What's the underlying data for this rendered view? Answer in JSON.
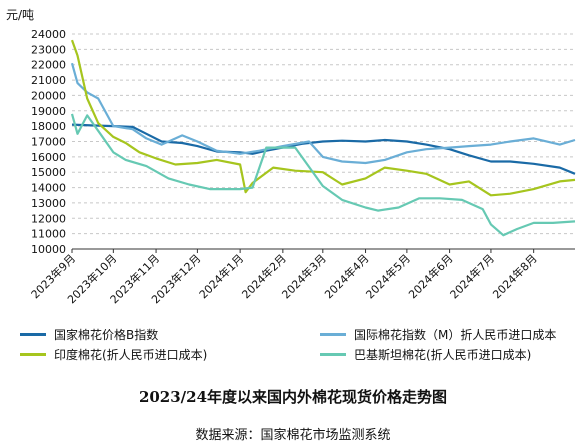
{
  "chart_data": {
    "type": "line",
    "title": "2023/24年度以来国内外棉花现货价格走势图",
    "source": "数据来源：国家棉花市场监测系统",
    "ylabel": "元/吨",
    "xlabel": "",
    "ylim": [
      10000,
      24000
    ],
    "yticks": [
      10000,
      11000,
      12000,
      13000,
      14000,
      15000,
      16000,
      17000,
      18000,
      19000,
      20000,
      21000,
      22000,
      23000,
      24000
    ],
    "xlim": [
      "2023-09-01",
      "2024-08-31"
    ],
    "xticks": [
      {
        "date": "2023-09-01",
        "label": "2023年9月"
      },
      {
        "date": "2023-10-01",
        "label": "2023年10月"
      },
      {
        "date": "2023-11-01",
        "label": "2023年11月"
      },
      {
        "date": "2023-12-01",
        "label": "2023年12月"
      },
      {
        "date": "2024-01-01",
        "label": "2024年1月"
      },
      {
        "date": "2024-02-01",
        "label": "2024年2月"
      },
      {
        "date": "2024-03-01",
        "label": "2024年3月"
      },
      {
        "date": "2024-04-01",
        "label": "2024年4月"
      },
      {
        "date": "2024-05-01",
        "label": "2024年5月"
      },
      {
        "date": "2024-06-01",
        "label": "2024年6月"
      },
      {
        "date": "2024-07-01",
        "label": "2024年7月"
      },
      {
        "date": "2024-08-01",
        "label": "2024年8月"
      }
    ],
    "grid": true,
    "legend_position": "bottom",
    "series": [
      {
        "name": "国家棉花价格B指数",
        "color": "#1a6aa6",
        "points": [
          [
            "2023-09-01",
            18100
          ],
          [
            "2023-09-15",
            18050
          ],
          [
            "2023-10-01",
            18000
          ],
          [
            "2023-10-15",
            17950
          ],
          [
            "2023-10-25",
            17500
          ],
          [
            "2023-11-05",
            17000
          ],
          [
            "2023-11-20",
            16900
          ],
          [
            "2023-12-01",
            16700
          ],
          [
            "2023-12-15",
            16350
          ],
          [
            "2024-01-01",
            16300
          ],
          [
            "2024-01-10",
            16200
          ],
          [
            "2024-01-20",
            16400
          ],
          [
            "2024-02-01",
            16600
          ],
          [
            "2024-02-15",
            16850
          ],
          [
            "2024-03-01",
            17000
          ],
          [
            "2024-03-15",
            17050
          ],
          [
            "2024-04-01",
            17000
          ],
          [
            "2024-04-15",
            17100
          ],
          [
            "2024-05-01",
            17000
          ],
          [
            "2024-05-15",
            16800
          ],
          [
            "2024-06-01",
            16500
          ],
          [
            "2024-06-15",
            16100
          ],
          [
            "2024-07-01",
            15700
          ],
          [
            "2024-07-15",
            15700
          ],
          [
            "2024-08-01",
            15550
          ],
          [
            "2024-08-20",
            15300
          ],
          [
            "2024-08-31",
            14900
          ]
        ]
      },
      {
        "name": "国际棉花指数（M）折人民币进口成本",
        "color": "#6aaed6",
        "points": [
          [
            "2023-09-01",
            22100
          ],
          [
            "2023-09-05",
            20800
          ],
          [
            "2023-09-12",
            20200
          ],
          [
            "2023-09-20",
            19800
          ],
          [
            "2023-10-01",
            18000
          ],
          [
            "2023-10-15",
            17800
          ],
          [
            "2023-10-25",
            17200
          ],
          [
            "2023-11-05",
            16800
          ],
          [
            "2023-11-20",
            17400
          ],
          [
            "2023-12-01",
            17000
          ],
          [
            "2023-12-15",
            16400
          ],
          [
            "2024-01-01",
            16200
          ],
          [
            "2024-01-15",
            16400
          ],
          [
            "2024-02-01",
            16700
          ],
          [
            "2024-02-20",
            17000
          ],
          [
            "2024-03-01",
            16000
          ],
          [
            "2024-03-15",
            15700
          ],
          [
            "2024-04-01",
            15600
          ],
          [
            "2024-04-15",
            15800
          ],
          [
            "2024-05-01",
            16300
          ],
          [
            "2024-05-15",
            16500
          ],
          [
            "2024-06-01",
            16600
          ],
          [
            "2024-06-15",
            16700
          ],
          [
            "2024-07-01",
            16800
          ],
          [
            "2024-07-15",
            17000
          ],
          [
            "2024-08-01",
            17200
          ],
          [
            "2024-08-20",
            16800
          ],
          [
            "2024-08-31",
            17100
          ]
        ]
      },
      {
        "name": "印度棉花(折人民币进口成本)",
        "color": "#a6c51e",
        "points": [
          [
            "2023-09-01",
            23600
          ],
          [
            "2023-09-05",
            22600
          ],
          [
            "2023-09-12",
            19800
          ],
          [
            "2023-09-20",
            18200
          ],
          [
            "2023-10-01",
            17300
          ],
          [
            "2023-10-10",
            16900
          ],
          [
            "2023-10-20",
            16300
          ],
          [
            "2023-11-01",
            15900
          ],
          [
            "2023-11-15",
            15500
          ],
          [
            "2023-12-01",
            15600
          ],
          [
            "2023-12-15",
            15800
          ],
          [
            "2024-01-01",
            15500
          ],
          [
            "2024-01-05",
            13700
          ],
          [
            "2024-01-10",
            14300
          ],
          [
            "2024-01-25",
            15300
          ],
          [
            "2024-02-10",
            15100
          ],
          [
            "2024-03-01",
            15000
          ],
          [
            "2024-03-15",
            14200
          ],
          [
            "2024-04-01",
            14600
          ],
          [
            "2024-04-15",
            15300
          ],
          [
            "2024-05-01",
            15100
          ],
          [
            "2024-05-15",
            14900
          ],
          [
            "2024-06-01",
            14200
          ],
          [
            "2024-06-15",
            14400
          ],
          [
            "2024-07-01",
            13500
          ],
          [
            "2024-07-15",
            13600
          ],
          [
            "2024-08-01",
            13900
          ],
          [
            "2024-08-20",
            14400
          ],
          [
            "2024-08-31",
            14500
          ]
        ]
      },
      {
        "name": "巴基斯坦棉花(折人民币进口成本)",
        "color": "#66c9b3",
        "points": [
          [
            "2023-09-01",
            18800
          ],
          [
            "2023-09-05",
            17500
          ],
          [
            "2023-09-12",
            18700
          ],
          [
            "2023-09-20",
            17700
          ],
          [
            "2023-10-01",
            16300
          ],
          [
            "2023-10-10",
            15800
          ],
          [
            "2023-10-25",
            15400
          ],
          [
            "2023-11-10",
            14600
          ],
          [
            "2023-11-25",
            14200
          ],
          [
            "2023-12-10",
            13900
          ],
          [
            "2024-01-01",
            13900
          ],
          [
            "2024-01-10",
            14000
          ],
          [
            "2024-01-20",
            16600
          ],
          [
            "2024-02-10",
            16600
          ],
          [
            "2024-03-01",
            14100
          ],
          [
            "2024-03-15",
            13200
          ],
          [
            "2024-04-01",
            12700
          ],
          [
            "2024-04-10",
            12500
          ],
          [
            "2024-04-25",
            12700
          ],
          [
            "2024-05-10",
            13300
          ],
          [
            "2024-05-25",
            13300
          ],
          [
            "2024-06-10",
            13200
          ],
          [
            "2024-06-25",
            12600
          ],
          [
            "2024-07-01",
            11600
          ],
          [
            "2024-07-10",
            10900
          ],
          [
            "2024-07-20",
            11300
          ],
          [
            "2024-08-01",
            11700
          ],
          [
            "2024-08-15",
            11700
          ],
          [
            "2024-08-31",
            11800
          ]
        ]
      }
    ]
  }
}
